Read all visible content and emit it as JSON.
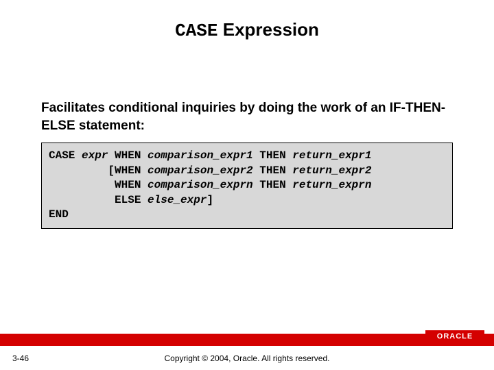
{
  "title": {
    "keyword": "CASE",
    "rest": " Expression",
    "keyword_font": "Courier New",
    "fontsize": 26,
    "color": "#000000"
  },
  "subtitle": {
    "text": "Facilitates conditional inquiries by doing the work of an IF-THEN-ELSE statement:",
    "fontsize": 19,
    "color": "#000000",
    "weight": "bold"
  },
  "codebox": {
    "background": "#d8d8d8",
    "border_color": "#000000",
    "font_family": "Courier New",
    "fontsize": 16,
    "lines": [
      {
        "indent": "",
        "parts": [
          {
            "t": "CASE ",
            "style": "kw"
          },
          {
            "t": "expr",
            "style": "it"
          },
          {
            "t": " WHEN ",
            "style": "kw"
          },
          {
            "t": "comparison_expr1",
            "style": "it"
          },
          {
            "t": " THEN ",
            "style": "kw"
          },
          {
            "t": "return_expr1",
            "style": "it"
          }
        ]
      },
      {
        "indent": "         ",
        "parts": [
          {
            "t": "[WHEN ",
            "style": "kw"
          },
          {
            "t": "comparison_expr2",
            "style": "it"
          },
          {
            "t": " THEN ",
            "style": "kw"
          },
          {
            "t": "return_expr2",
            "style": "it"
          }
        ]
      },
      {
        "indent": "          ",
        "parts": [
          {
            "t": "WHEN ",
            "style": "kw"
          },
          {
            "t": "comparison_exprn",
            "style": "it"
          },
          {
            "t": " THEN ",
            "style": "kw"
          },
          {
            "t": "return_exprn",
            "style": "it"
          }
        ]
      },
      {
        "indent": "          ",
        "parts": [
          {
            "t": "ELSE ",
            "style": "kw"
          },
          {
            "t": "else_expr",
            "style": "it"
          },
          {
            "t": "]",
            "style": "kw"
          }
        ]
      },
      {
        "indent": "",
        "parts": [
          {
            "t": "END",
            "style": "kw"
          }
        ]
      }
    ]
  },
  "footer": {
    "page": "3-46",
    "copyright": "Copyright © 2004, Oracle.  All rights reserved.",
    "bar_color": "#d40000",
    "logo_text": "ORACLE",
    "logo_bg": "#d40000",
    "logo_fg": "#ffffff"
  }
}
